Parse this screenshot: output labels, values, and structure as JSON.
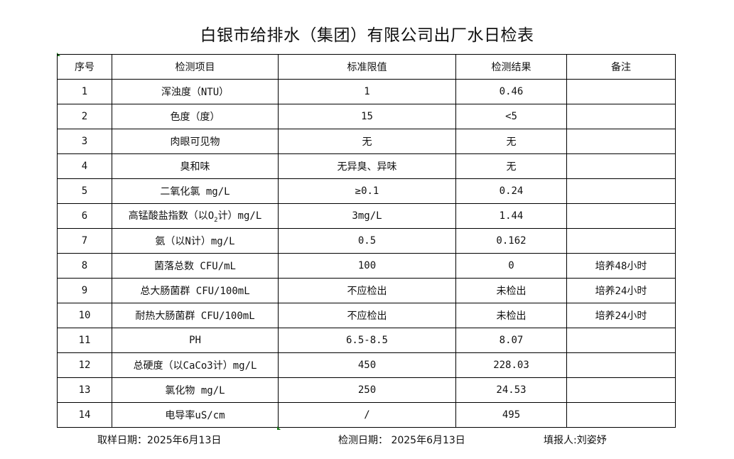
{
  "title": "白银市给排水（集团）有限公司出厂水日检表",
  "headers": [
    "序号",
    "检测项目",
    "标准限值",
    "检测结果",
    "备注"
  ],
  "rows": [
    {
      "no": "1",
      "item": "浑浊度（NTU）",
      "limit": "1",
      "result": "0.46",
      "note": ""
    },
    {
      "no": "2",
      "item": "色度（度）",
      "limit": "15",
      "result": "<5",
      "note": ""
    },
    {
      "no": "3",
      "item": "肉眼可见物",
      "limit": "无",
      "result": "无",
      "note": ""
    },
    {
      "no": "4",
      "item": "臭和味",
      "limit": "无异臭、异味",
      "result": "无",
      "note": ""
    },
    {
      "no": "5",
      "item": "二氧化氯 mg/L",
      "limit": "≥0.1",
      "result": "0.24",
      "note": ""
    },
    {
      "no": "6",
      "item": "高锰酸盐指数（以O",
      "item_sub": "2",
      "item_suffix": "计）mg/L",
      "limit": "3mg/L",
      "result": "1.44",
      "note": ""
    },
    {
      "no": "7",
      "item": "氨（以N计）mg/L",
      "limit": "0.5",
      "result": "0.162",
      "note": ""
    },
    {
      "no": "8",
      "item": "菌落总数 CFU/mL",
      "limit": "100",
      "result": "0",
      "note": "培养48小时"
    },
    {
      "no": "9",
      "item": "总大肠菌群 CFU/100mL",
      "limit": "不应检出",
      "result": "未检出",
      "note": "培养24小时"
    },
    {
      "no": "10",
      "item": "耐热大肠菌群 CFU/100mL",
      "limit": "不应检出",
      "result": "未检出",
      "note": "培养24小时"
    },
    {
      "no": "11",
      "item": "PH",
      "limit": "6.5-8.5",
      "result": "8.07",
      "note": ""
    },
    {
      "no": "12",
      "item": "总硬度（以CaCo3计）mg/L",
      "limit": "450",
      "result": "228.03",
      "note": ""
    },
    {
      "no": "13",
      "item": "氯化物 mg/L",
      "limit": "250",
      "result": "24.53",
      "note": ""
    },
    {
      "no": "14",
      "item": "电导率uS/cm",
      "limit": "/",
      "result": "495",
      "note": ""
    }
  ],
  "footer": {
    "sampling_date": "取样日期：2025年6月13日",
    "test_date": "检测日期： 2025年6月13日",
    "reporter": "填报人:刘姿妤"
  }
}
